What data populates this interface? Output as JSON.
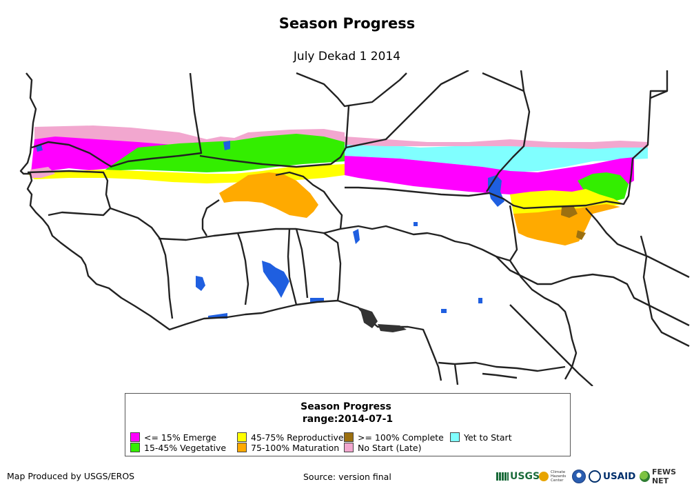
{
  "header": {
    "title": "Season Progress",
    "subtitle": "July Dekad 1 2014"
  },
  "legend": {
    "title": "Season Progress",
    "range": "range:2014-07-1",
    "items": [
      {
        "label": "<= 15% Emerge",
        "color": "#ff00ff"
      },
      {
        "label": "15-45% Vegetative",
        "color": "#33ee00"
      },
      {
        "label": "45-75% Reproductive",
        "color": "#ffff00"
      },
      {
        "label": "75-100% Maturation",
        "color": "#ffaa00"
      },
      {
        "label": ">= 100% Complete",
        "color": "#9c7010"
      },
      {
        "label": "No Start (Late)",
        "color": "#f2a7cf"
      },
      {
        "label": "Yet to Start",
        "color": "#80ffff"
      }
    ]
  },
  "map_colors": {
    "water": "#1f5fe0",
    "boundary": "#222222",
    "background": "#ffffff"
  },
  "footer": {
    "credit": "Map Produced by USGS/EROS",
    "source": "Source: version final"
  },
  "logos": {
    "usgs": "USGS",
    "usgs_icon": "usgs-mark",
    "chc": "Climate Hazards Center",
    "noaa_icon": "noaa-disc",
    "usaid": "USAID",
    "fews": "FEWS NET"
  }
}
